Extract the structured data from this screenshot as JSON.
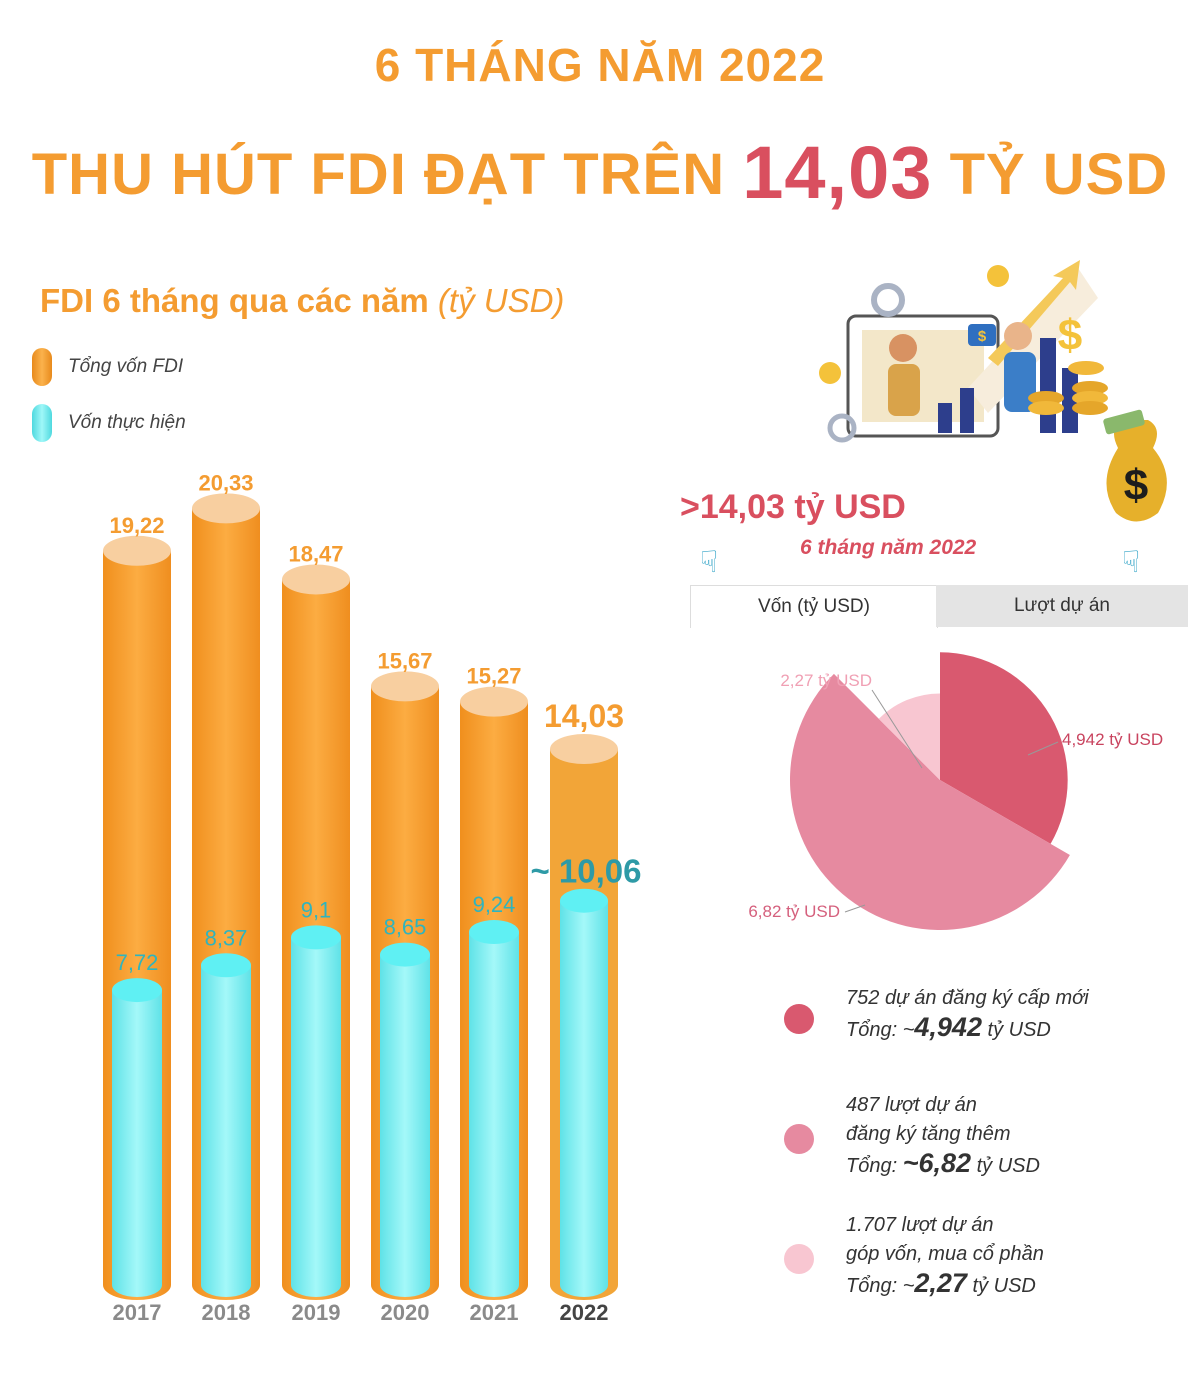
{
  "header": {
    "subtitle": "6 THÁNG NĂM 2022",
    "title_prefix": "THU HÚT FDI ĐẠT TRÊN",
    "title_value": "14,03",
    "title_suffix": "TỶ USD"
  },
  "chart_title": {
    "text": "FDI 6 tháng qua các năm",
    "unit": "(tỷ USD)"
  },
  "legend": [
    {
      "label": "Tổng vốn FDI",
      "color": "#f9a234"
    },
    {
      "label": "Vốn thực hiện",
      "color": "#7ff0f2"
    }
  ],
  "chart_data": [
    {
      "type": "bar",
      "title": "FDI 6 tháng qua các năm (tỷ USD)",
      "categories": [
        "2017",
        "2018",
        "2019",
        "2020",
        "2021",
        "2022"
      ],
      "series": [
        {
          "name": "Tổng vốn FDI",
          "values": [
            19.22,
            20.33,
            18.47,
            15.67,
            15.27,
            14.03
          ],
          "labels": [
            "19,22",
            "20,33",
            "18,47",
            "15,67",
            "15,27",
            "14,03"
          ],
          "color": "#f9a234"
        },
        {
          "name": "Vốn thực hiện",
          "values": [
            7.72,
            8.37,
            9.1,
            8.65,
            9.24,
            10.06
          ],
          "labels": [
            "7,72",
            "8,37",
            "9,1",
            "8,65",
            "9,24",
            "~ 10,06"
          ],
          "color": "#7ff0f2"
        }
      ],
      "ylim": [
        0,
        22
      ]
    },
    {
      "type": "pie",
      "tabs": [
        "Vốn (tỷ USD)",
        "Lượt dự án"
      ],
      "active_tab": "Vốn (tỷ USD)",
      "slices": [
        {
          "value": 4.942,
          "label": "4,942 tỷ USD",
          "color": "#d9596f",
          "label_color": "#c9445f"
        },
        {
          "value": 6.82,
          "label": "6,82 tỷ USD",
          "color": "#e68aa0",
          "label_color": "#d5607d"
        },
        {
          "value": 2.27,
          "label": "2,27 tỷ USD",
          "color": "#f8c6d1",
          "label_color": "#f0a0b4"
        }
      ]
    }
  ],
  "highlight": {
    "value": ">14,03 tỷ USD",
    "caption": "6 tháng năm 2022"
  },
  "pie_legend": [
    {
      "count": "752",
      "desc_lines": [
        "dự án đăng ký cấp mới"
      ],
      "total_prefix": "Tổng: ~",
      "total_value": "4,942",
      "total_unit": "tỷ USD",
      "color": "#d9596f"
    },
    {
      "count": "487",
      "desc_lines": [
        "lượt dự án",
        "đăng ký tăng thêm"
      ],
      "total_prefix": "Tổng: ",
      "total_value": "~6,82",
      "total_unit": "tỷ USD",
      "color": "#e68aa0"
    },
    {
      "count": "1.707",
      "desc_lines": [
        "lượt dự án",
        "góp vốn, mua cổ phần"
      ],
      "total_prefix": "Tổng: ~",
      "total_value": "2,27",
      "total_unit": "tỷ USD",
      "color": "#f8c6d1"
    }
  ]
}
